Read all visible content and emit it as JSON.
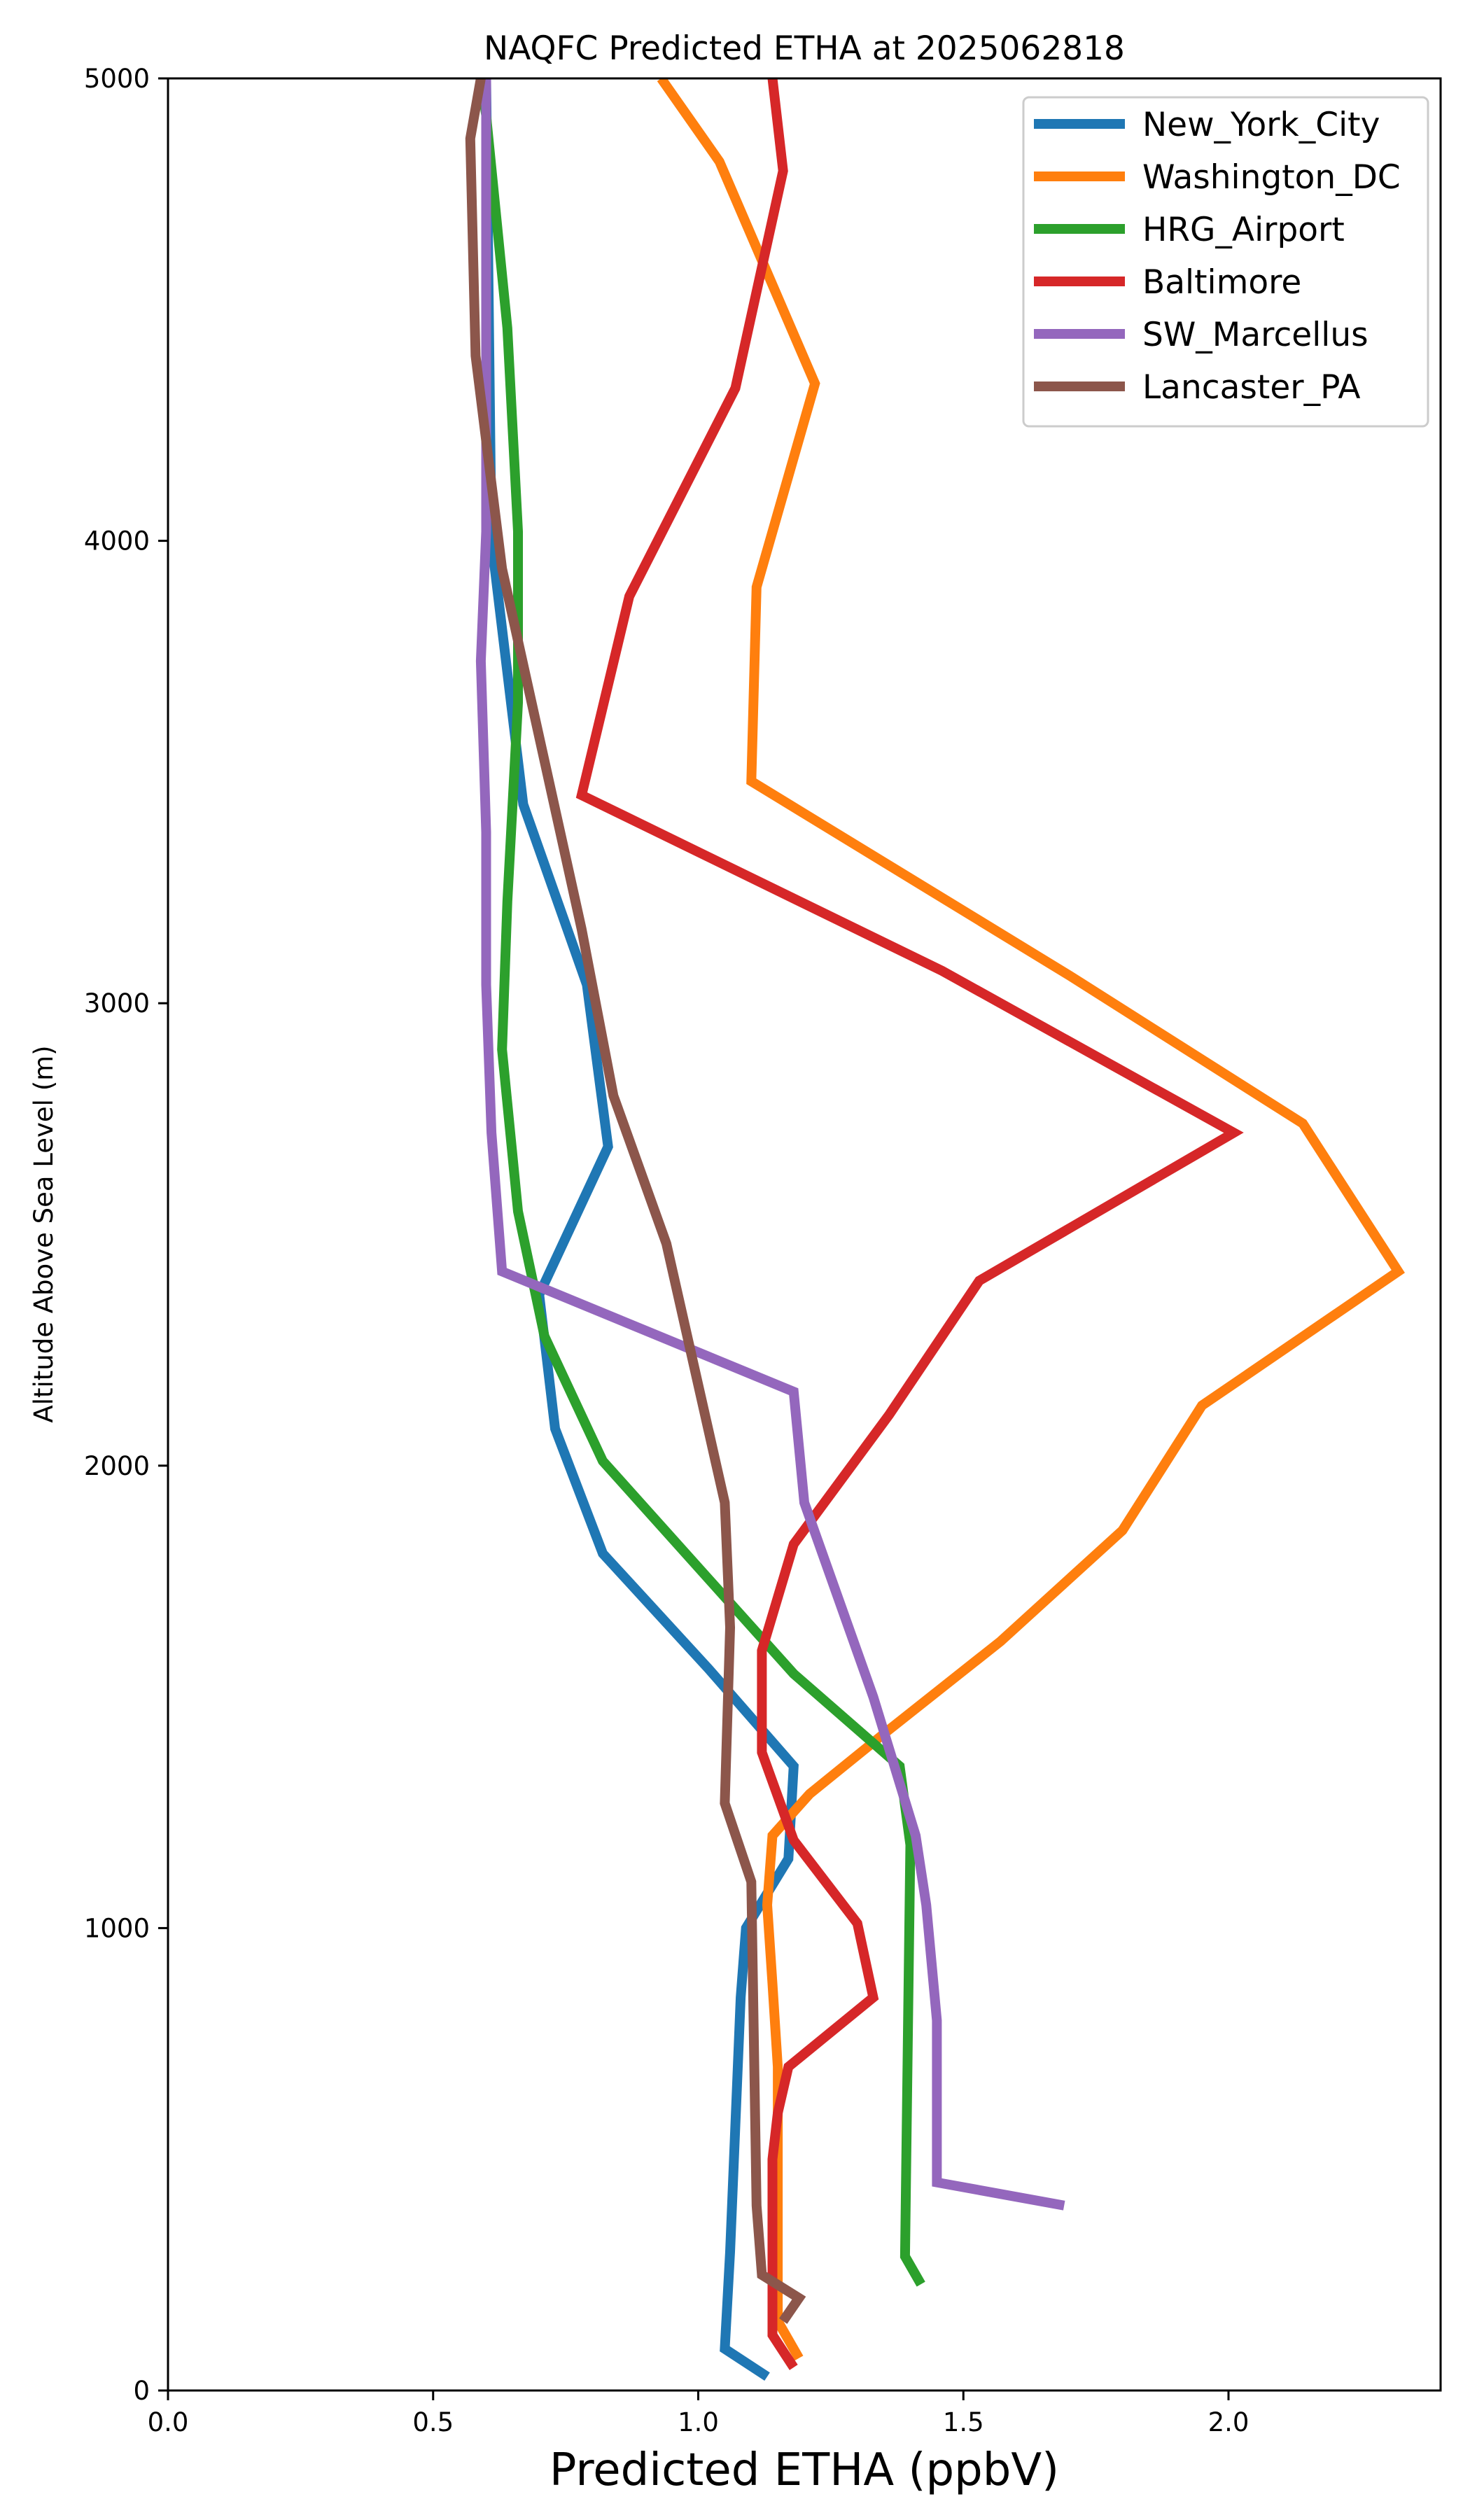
{
  "chart_data": {
    "type": "line",
    "title": "NAQFC Predicted ETHA at 2025062818",
    "xlabel": "Predicted ETHA (ppbV)",
    "ylabel": "Altitude Above Sea Level (m)",
    "xlim": [
      0.0,
      2.4
    ],
    "ylim": [
      0,
      5000
    ],
    "xticks": [
      "0.0",
      "0.5",
      "1.0",
      "1.5",
      "2.0"
    ],
    "yticks": [
      "0",
      "1000",
      "2000",
      "3000",
      "4000",
      "5000"
    ],
    "grid": false,
    "legend_position": "top-right",
    "series": [
      {
        "name": "New_York_City",
        "color": "#1f77b4",
        "points": [
          [
            1.13,
            30
          ],
          [
            1.05,
            90
          ],
          [
            1.06,
            300
          ],
          [
            1.08,
            850
          ],
          [
            1.09,
            1000
          ],
          [
            1.17,
            1150
          ],
          [
            1.18,
            1350
          ],
          [
            1.02,
            1560
          ],
          [
            0.82,
            1810
          ],
          [
            0.73,
            2080
          ],
          [
            0.7,
            2370
          ],
          [
            0.83,
            2690
          ],
          [
            0.79,
            3040
          ],
          [
            0.67,
            3430
          ],
          [
            0.61,
            4000
          ],
          [
            0.6,
            5000
          ]
        ]
      },
      {
        "name": "Washington_DC",
        "color": "#ff7f0e",
        "points": [
          [
            1.19,
            70
          ],
          [
            1.15,
            150
          ],
          [
            1.15,
            700
          ],
          [
            1.14,
            880
          ],
          [
            1.13,
            1050
          ],
          [
            1.14,
            1200
          ],
          [
            1.21,
            1290
          ],
          [
            1.35,
            1420
          ],
          [
            1.57,
            1620
          ],
          [
            1.8,
            1860
          ],
          [
            1.95,
            2130
          ],
          [
            2.32,
            2420
          ],
          [
            2.14,
            2740
          ],
          [
            1.7,
            3060
          ],
          [
            1.1,
            3480
          ],
          [
            1.11,
            3900
          ],
          [
            1.22,
            4340
          ],
          [
            1.04,
            4820
          ],
          [
            0.93,
            5000
          ]
        ]
      },
      {
        "name": "HRG_Airport",
        "color": "#2ca02c",
        "points": [
          [
            1.42,
            230
          ],
          [
            1.39,
            290
          ],
          [
            1.4,
            1180
          ],
          [
            1.38,
            1350
          ],
          [
            1.18,
            1550
          ],
          [
            0.82,
            2010
          ],
          [
            0.71,
            2280
          ],
          [
            0.66,
            2550
          ],
          [
            0.63,
            2900
          ],
          [
            0.64,
            3220
          ],
          [
            0.66,
            3650
          ],
          [
            0.66,
            4020
          ],
          [
            0.64,
            4460
          ],
          [
            0.6,
            4920
          ],
          [
            0.59,
            5000
          ]
        ]
      },
      {
        "name": "Baltimore",
        "color": "#d62728",
        "points": [
          [
            1.18,
            50
          ],
          [
            1.14,
            120
          ],
          [
            1.14,
            500
          ],
          [
            1.15,
            600
          ],
          [
            1.17,
            700
          ],
          [
            1.33,
            850
          ],
          [
            1.3,
            1010
          ],
          [
            1.18,
            1190
          ],
          [
            1.12,
            1380
          ],
          [
            1.12,
            1600
          ],
          [
            1.18,
            1830
          ],
          [
            1.36,
            2110
          ],
          [
            1.53,
            2400
          ],
          [
            2.01,
            2720
          ],
          [
            1.46,
            3070
          ],
          [
            0.78,
            3450
          ],
          [
            0.87,
            3880
          ],
          [
            1.07,
            4330
          ],
          [
            1.16,
            4800
          ],
          [
            1.14,
            5000
          ]
        ]
      },
      {
        "name": "SW_Marcellus",
        "color": "#9467bd",
        "points": [
          [
            1.69,
            400
          ],
          [
            1.45,
            450
          ],
          [
            1.45,
            800
          ],
          [
            1.43,
            1050
          ],
          [
            1.41,
            1200
          ],
          [
            1.33,
            1500
          ],
          [
            1.2,
            1920
          ],
          [
            1.18,
            2160
          ],
          [
            0.63,
            2420
          ],
          [
            0.61,
            2720
          ],
          [
            0.6,
            3040
          ],
          [
            0.6,
            3370
          ],
          [
            0.59,
            3740
          ],
          [
            0.6,
            4020
          ],
          [
            0.6,
            5000
          ]
        ]
      },
      {
        "name": "Lancaster_PA",
        "color": "#8c564b",
        "points": [
          [
            1.16,
            150
          ],
          [
            1.19,
            200
          ],
          [
            1.12,
            250
          ],
          [
            1.11,
            400
          ],
          [
            1.1,
            1100
          ],
          [
            1.05,
            1270
          ],
          [
            1.06,
            1650
          ],
          [
            1.05,
            1920
          ],
          [
            0.94,
            2480
          ],
          [
            0.84,
            2800
          ],
          [
            0.78,
            3160
          ],
          [
            0.63,
            3940
          ],
          [
            0.58,
            4400
          ],
          [
            0.57,
            4870
          ],
          [
            0.59,
            5000
          ]
        ]
      }
    ]
  }
}
